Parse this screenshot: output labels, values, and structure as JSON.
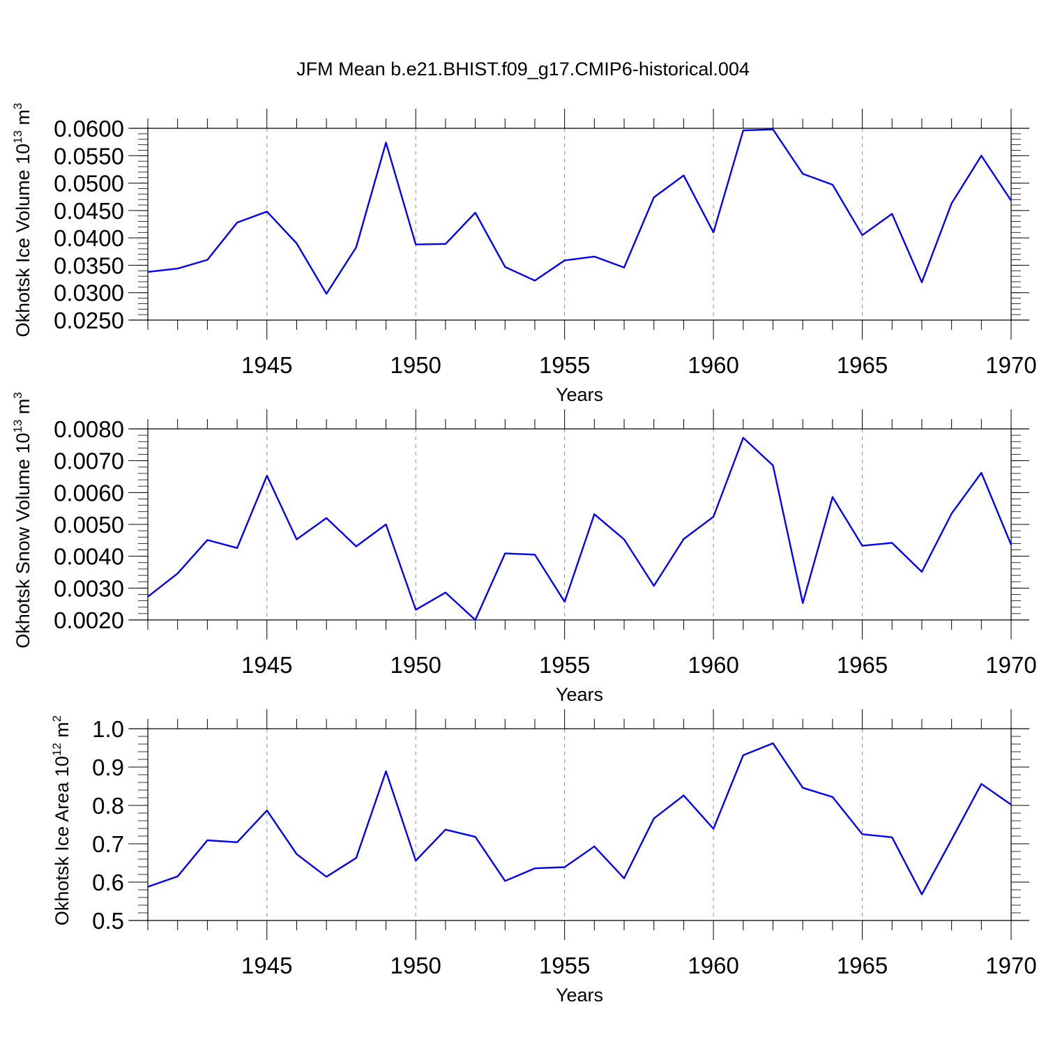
{
  "figure_title": "JFM Mean b.e21.BHIST.f09_g17.CMIP6-historical.004",
  "colors": {
    "line": "#0000ff",
    "axes": "#000000",
    "grid": "#888888"
  },
  "chart_data": [
    {
      "type": "line",
      "ylabel_main": "Okhotsk Ice Volume 10",
      "ylabel_exp": "13",
      "ylabel_unit": " m",
      "ylabel_unit_exp": "3",
      "xlabel": "Years",
      "xlim": [
        1941,
        1970
      ],
      "ylim": [
        0.025,
        0.06
      ],
      "yticks": [
        "0.0250",
        "0.0300",
        "0.0350",
        "0.0400",
        "0.0450",
        "0.0500",
        "0.0550",
        "0.0600"
      ],
      "ytick_values": [
        0.025,
        0.03,
        0.035,
        0.04,
        0.045,
        0.05,
        0.055,
        0.06
      ],
      "yminor_step": 0.001,
      "xticks": [
        "1945",
        "1950",
        "1955",
        "1960",
        "1965",
        "1970"
      ],
      "xtick_values": [
        1945,
        1950,
        1955,
        1960,
        1965,
        1970
      ],
      "x": [
        1941,
        1942,
        1943,
        1944,
        1945,
        1946,
        1947,
        1948,
        1949,
        1950,
        1951,
        1952,
        1953,
        1954,
        1955,
        1956,
        1957,
        1958,
        1959,
        1960,
        1961,
        1962,
        1963,
        1964,
        1965,
        1966,
        1967,
        1968,
        1969,
        1970
      ],
      "values": [
        0.0338,
        0.0344,
        0.036,
        0.0428,
        0.0448,
        0.039,
        0.0298,
        0.0383,
        0.0574,
        0.0388,
        0.0389,
        0.0446,
        0.0347,
        0.0322,
        0.0359,
        0.0366,
        0.0346,
        0.0474,
        0.0514,
        0.041,
        0.0596,
        0.0598,
        0.0517,
        0.0497,
        0.0405,
        0.0444,
        0.0319,
        0.0463,
        0.055,
        0.0468
      ]
    },
    {
      "type": "line",
      "ylabel_main": "Okhotsk Snow Volume 10",
      "ylabel_exp": "13",
      "ylabel_unit": " m",
      "ylabel_unit_exp": "3",
      "xlabel": "Years",
      "xlim": [
        1941,
        1970
      ],
      "ylim": [
        0.002,
        0.008
      ],
      "yticks": [
        "0.0020",
        "0.0030",
        "0.0040",
        "0.0050",
        "0.0060",
        "0.0070",
        "0.0080"
      ],
      "ytick_values": [
        0.002,
        0.003,
        0.004,
        0.005,
        0.006,
        0.007,
        0.008
      ],
      "yminor_step": 0.0002,
      "xticks": [
        "1945",
        "1950",
        "1955",
        "1960",
        "1965",
        "1970"
      ],
      "xtick_values": [
        1945,
        1950,
        1955,
        1960,
        1965,
        1970
      ],
      "x": [
        1941,
        1942,
        1943,
        1944,
        1945,
        1946,
        1947,
        1948,
        1949,
        1950,
        1951,
        1952,
        1953,
        1954,
        1955,
        1956,
        1957,
        1958,
        1959,
        1960,
        1961,
        1962,
        1963,
        1964,
        1965,
        1966,
        1967,
        1968,
        1969,
        1970
      ],
      "values": [
        0.00273,
        0.00346,
        0.00451,
        0.00426,
        0.00653,
        0.00453,
        0.0052,
        0.00431,
        0.005,
        0.00232,
        0.00286,
        0.002,
        0.00409,
        0.00405,
        0.00257,
        0.00532,
        0.00453,
        0.00307,
        0.00454,
        0.00524,
        0.00772,
        0.00685,
        0.00253,
        0.00586,
        0.00433,
        0.00442,
        0.00351,
        0.00534,
        0.00662,
        0.00436
      ]
    },
    {
      "type": "line",
      "ylabel_main": "Okhotsk Ice Area 10",
      "ylabel_exp": "12",
      "ylabel_unit": " m",
      "ylabel_unit_exp": "2",
      "xlabel": "Years",
      "xlim": [
        1941,
        1970
      ],
      "ylim": [
        0.5,
        1.0
      ],
      "yticks": [
        "0.5",
        "0.6",
        "0.7",
        "0.8",
        "0.9",
        "1.0"
      ],
      "ytick_values": [
        0.5,
        0.6,
        0.7,
        0.8,
        0.9,
        1.0
      ],
      "yminor_step": 0.02,
      "xticks": [
        "1945",
        "1950",
        "1955",
        "1960",
        "1965",
        "1970"
      ],
      "xtick_values": [
        1945,
        1950,
        1955,
        1960,
        1965,
        1970
      ],
      "x": [
        1941,
        1942,
        1943,
        1944,
        1945,
        1946,
        1947,
        1948,
        1949,
        1950,
        1951,
        1952,
        1953,
        1954,
        1955,
        1956,
        1957,
        1958,
        1959,
        1960,
        1961,
        1962,
        1963,
        1964,
        1965,
        1966,
        1967,
        1968,
        1969,
        1970
      ],
      "values": [
        0.588,
        0.615,
        0.709,
        0.704,
        0.787,
        0.673,
        0.614,
        0.663,
        0.889,
        0.656,
        0.737,
        0.718,
        0.603,
        0.636,
        0.639,
        0.693,
        0.61,
        0.766,
        0.826,
        0.739,
        0.931,
        0.962,
        0.846,
        0.822,
        0.725,
        0.717,
        0.568,
        0.711,
        0.856,
        0.802
      ]
    }
  ]
}
